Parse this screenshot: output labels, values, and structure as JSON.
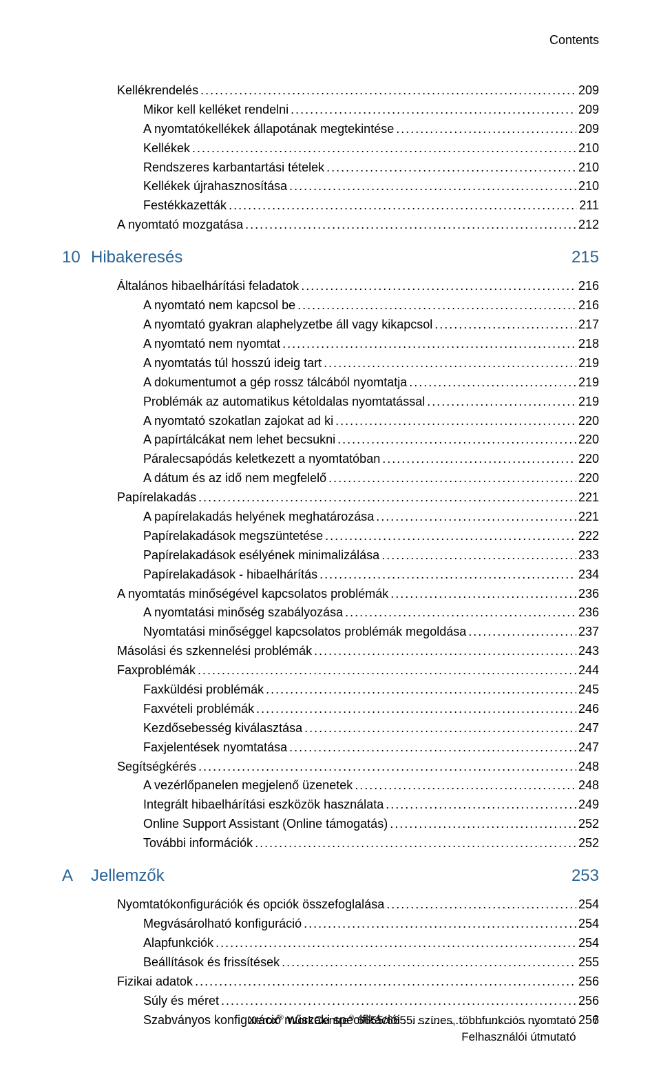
{
  "colors": {
    "text": "#000000",
    "accent": "#2a6496",
    "background": "#ffffff"
  },
  "header": {
    "label": "Contents"
  },
  "footer": {
    "line1_a": "Xerox",
    "line1_b": " WorkCentre",
    "line1_c": " 6655/6655i színes, többfunkciós nyomtató",
    "line2": "Felhasználói útmutató",
    "page": "7",
    "reg": "®"
  },
  "chapters": [
    {
      "num": "10",
      "title": "Hibakeresés",
      "page": "215"
    },
    {
      "num": "A",
      "title": "Jellemzők",
      "page": "253"
    }
  ],
  "toc": [
    {
      "lvl": 1,
      "title": "Kellékrendelés",
      "page": "209"
    },
    {
      "lvl": 2,
      "title": "Mikor kell kelléket rendelni",
      "page": "209"
    },
    {
      "lvl": 2,
      "title": "A nyomtatókellékek állapotának megtekintése",
      "page": "209"
    },
    {
      "lvl": 2,
      "title": "Kellékek",
      "page": "210"
    },
    {
      "lvl": 2,
      "title": "Rendszeres karbantartási tételek",
      "page": "210"
    },
    {
      "lvl": 2,
      "title": "Kellékek újrahasznosítása",
      "page": "210"
    },
    {
      "lvl": 2,
      "title": "Festékkazetták",
      "page": "211"
    },
    {
      "lvl": 1,
      "title": "A nyomtató mozgatása",
      "page": "212"
    },
    {
      "chapter": 0
    },
    {
      "lvl": 1,
      "title": "Általános hibaelhárítási feladatok",
      "page": "216"
    },
    {
      "lvl": 2,
      "title": "A nyomtató nem kapcsol be",
      "page": "216"
    },
    {
      "lvl": 2,
      "title": "A nyomtató gyakran alaphelyzetbe áll vagy kikapcsol",
      "page": "217"
    },
    {
      "lvl": 2,
      "title": "A nyomtató nem nyomtat",
      "page": "218"
    },
    {
      "lvl": 2,
      "title": "A nyomtatás túl hosszú ideig tart",
      "page": "219"
    },
    {
      "lvl": 2,
      "title": "A dokumentumot a gép rossz tálcából nyomtatja",
      "page": "219"
    },
    {
      "lvl": 2,
      "title": "Problémák az automatikus kétoldalas nyomtatással",
      "page": "219"
    },
    {
      "lvl": 2,
      "title": "A nyomtató szokatlan zajokat ad ki",
      "page": "220"
    },
    {
      "lvl": 2,
      "title": "A papírtálcákat nem lehet becsukni",
      "page": "220"
    },
    {
      "lvl": 2,
      "title": "Páralecsapódás keletkezett a nyomtatóban",
      "page": "220"
    },
    {
      "lvl": 2,
      "title": "A dátum és az idő nem megfelelő",
      "page": "220"
    },
    {
      "lvl": 1,
      "title": "Papírelakadás",
      "page": "221"
    },
    {
      "lvl": 2,
      "title": "A papírelakadás helyének meghatározása",
      "page": "221"
    },
    {
      "lvl": 2,
      "title": "Papírelakadások megszüntetése",
      "page": "222"
    },
    {
      "lvl": 2,
      "title": "Papírelakadások esélyének minimalizálása",
      "page": "233"
    },
    {
      "lvl": 2,
      "title": "Papírelakadások - hibaelhárítás",
      "page": "234"
    },
    {
      "lvl": 1,
      "title": "A nyomtatás minőségével kapcsolatos problémák",
      "page": "236"
    },
    {
      "lvl": 2,
      "title": "A nyomtatási minőség szabályozása",
      "page": "236"
    },
    {
      "lvl": 2,
      "title": "Nyomtatási minőséggel kapcsolatos problémák megoldása",
      "page": "237"
    },
    {
      "lvl": 1,
      "title": "Másolási és szkennelési problémák",
      "page": "243"
    },
    {
      "lvl": 1,
      "title": "Faxproblémák",
      "page": "244"
    },
    {
      "lvl": 2,
      "title": "Faxküldési problémák",
      "page": "245"
    },
    {
      "lvl": 2,
      "title": "Faxvételi problémák",
      "page": "246"
    },
    {
      "lvl": 2,
      "title": "Kezdősebesség kiválasztása",
      "page": "247"
    },
    {
      "lvl": 2,
      "title": "Faxjelentések nyomtatása",
      "page": "247"
    },
    {
      "lvl": 1,
      "title": "Segítségkérés",
      "page": "248"
    },
    {
      "lvl": 2,
      "title": "A vezérlőpanelen megjelenő üzenetek",
      "page": "248"
    },
    {
      "lvl": 2,
      "title": "Integrált hibaelhárítási eszközök használata",
      "page": "249"
    },
    {
      "lvl": 2,
      "title": "Online Support Assistant (Online támogatás)",
      "page": "252"
    },
    {
      "lvl": 2,
      "title": "További információk",
      "page": "252"
    },
    {
      "chapter": 1
    },
    {
      "lvl": 1,
      "title": "Nyomtatókonfigurációk és opciók összefoglalása",
      "page": "254"
    },
    {
      "lvl": 2,
      "title": "Megvásárolható konfiguráció",
      "page": "254"
    },
    {
      "lvl": 2,
      "title": "Alapfunkciók",
      "page": "254"
    },
    {
      "lvl": 2,
      "title": "Beállítások és frissítések",
      "page": "255"
    },
    {
      "lvl": 1,
      "title": "Fizikai adatok",
      "page": "256"
    },
    {
      "lvl": 2,
      "title": "Súly és méret",
      "page": "256"
    },
    {
      "lvl": 2,
      "title": "Szabványos konfiguráció műszaki specifikációi",
      "page": "256"
    }
  ]
}
